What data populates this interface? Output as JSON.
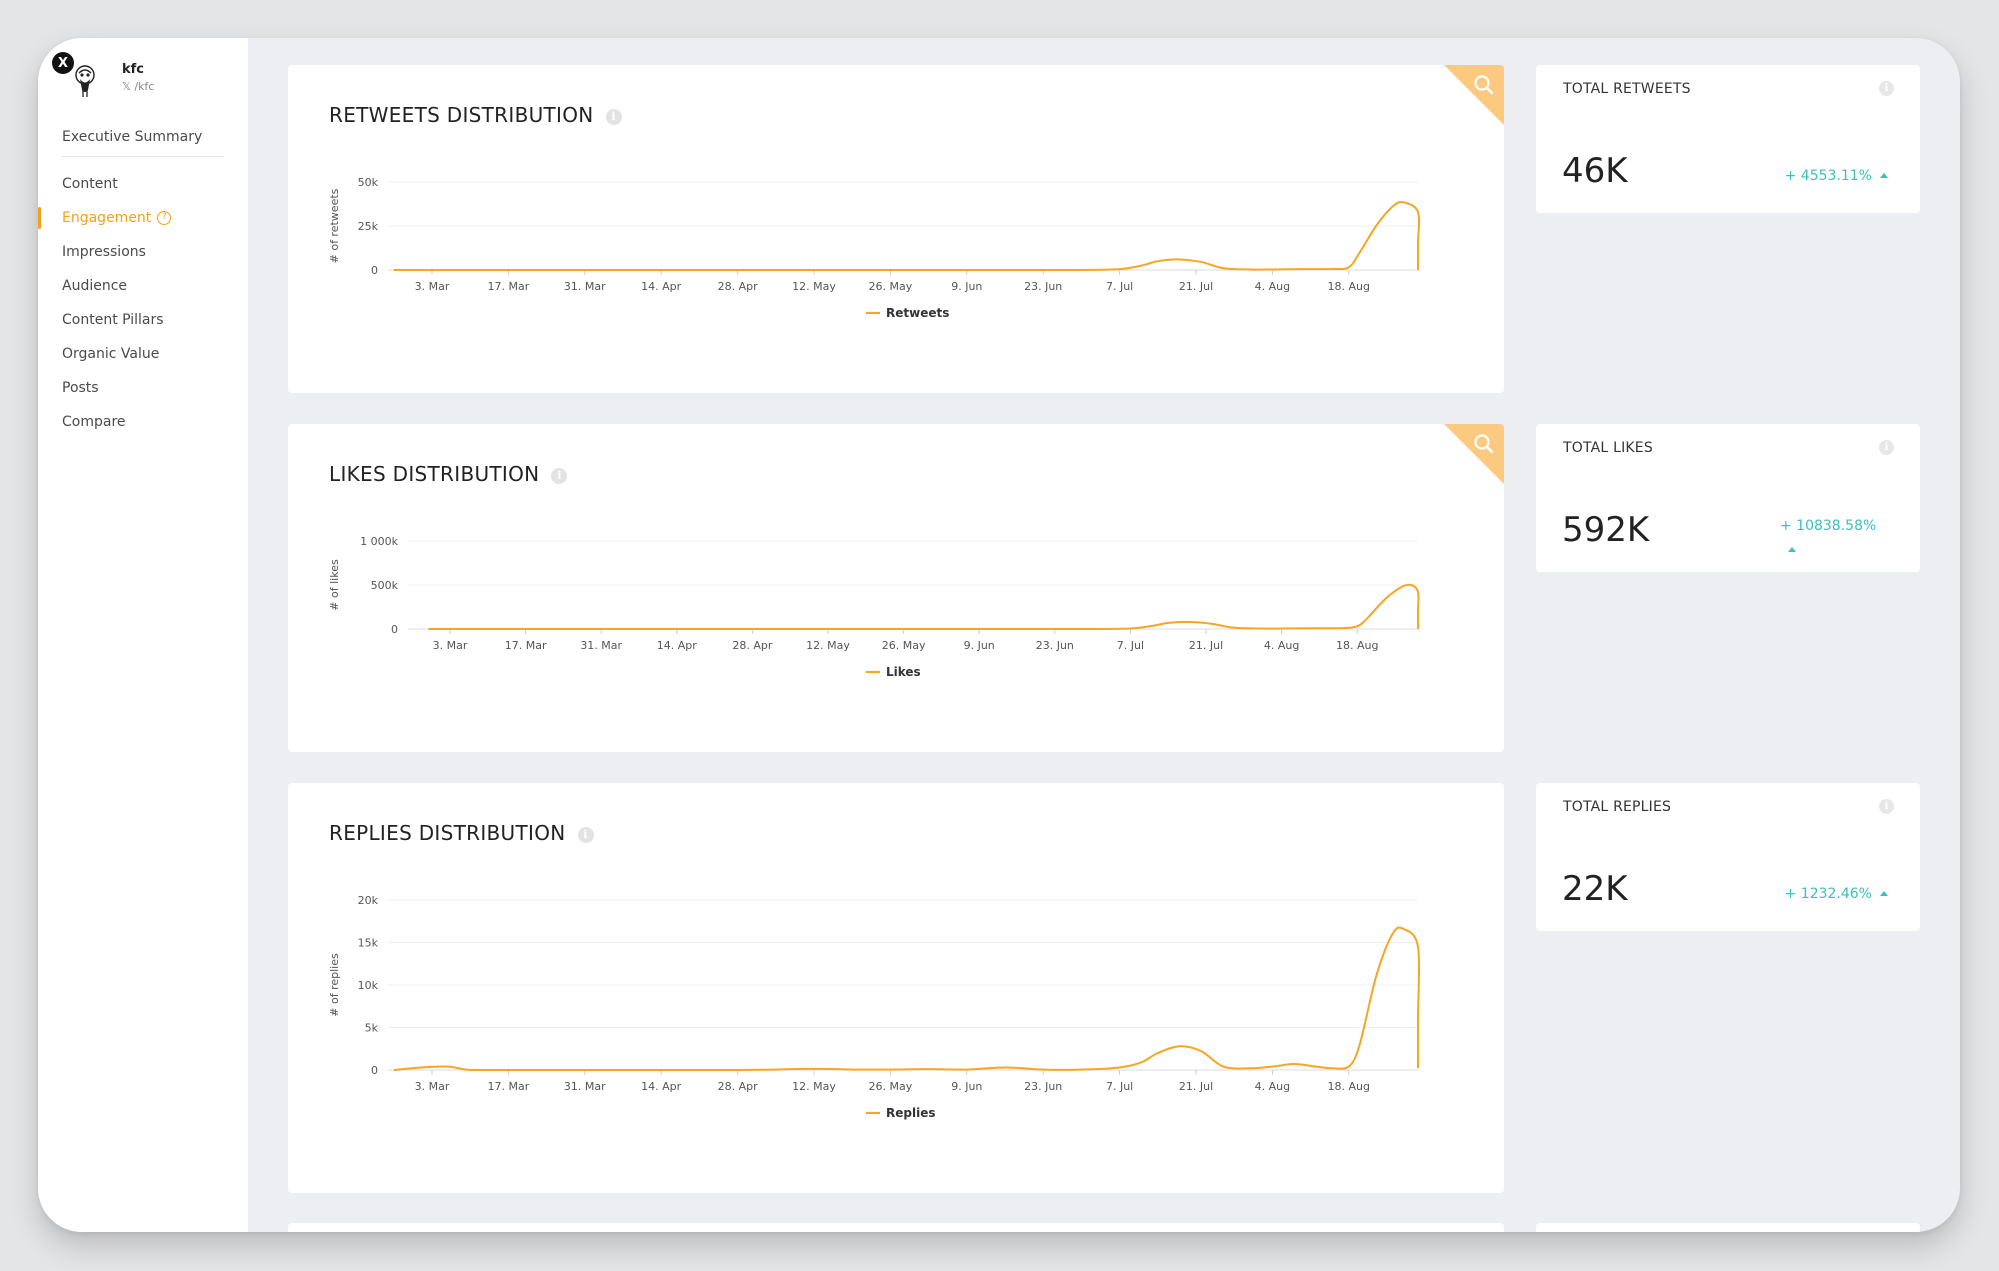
{
  "sidebar": {
    "brand_name": "kfc",
    "brand_handle": "𝕏 /kfc",
    "items": [
      {
        "label": "Executive Summary"
      },
      {
        "label": "Content"
      },
      {
        "label": "Engagement",
        "active": true
      },
      {
        "label": "Impressions"
      },
      {
        "label": "Audience"
      },
      {
        "label": "Content Pillars"
      },
      {
        "label": "Organic Value"
      },
      {
        "label": "Posts"
      },
      {
        "label": "Compare"
      }
    ]
  },
  "colors": {
    "accent": "#f2a11a",
    "line": "#f5a623",
    "positive": "#3bbfbf"
  },
  "chart_data": [
    {
      "type": "line",
      "title": "RETWEETS DISTRIBUTION",
      "ylabel": "# of retweets",
      "yticks": [
        "0",
        "25k",
        "50k"
      ],
      "ylim": [
        0,
        50000
      ],
      "xticks": [
        "3. Mar",
        "17. Mar",
        "31. Mar",
        "14. Apr",
        "28. Apr",
        "12. May",
        "26. May",
        "9. Jun",
        "23. Jun",
        "7. Jul",
        "21. Jul",
        "4. Aug",
        "18. Aug"
      ],
      "series": [
        {
          "name": "Retweets",
          "x": [
            -7,
            7,
            14,
            21,
            28,
            35,
            42,
            49,
            56,
            63,
            70,
            77,
            84,
            91,
            98,
            105,
            112,
            119,
            126,
            130,
            133,
            137,
            141,
            145,
            150,
            154,
            160,
            165,
            168,
            170,
            173,
            176,
            178,
            181,
            184,
            186,
            189,
            192,
            196,
            197
          ],
          "y": [
            0,
            0,
            0,
            0,
            0,
            0,
            0,
            0,
            0,
            0,
            0,
            0,
            0,
            0,
            0,
            0,
            0,
            0,
            500,
            2500,
            5000,
            6000,
            4500,
            1000,
            300,
            300,
            500,
            600,
            1500,
            10000,
            25000,
            36000,
            38500,
            33000,
            15000,
            3000,
            500,
            500,
            600,
            1500
          ]
        }
      ]
    },
    {
      "type": "line",
      "title": "LIKES DISTRIBUTION",
      "ylabel": "# of likes",
      "yticks": [
        "0",
        "500k",
        "1 000k"
      ],
      "ylim": [
        0,
        1000000
      ],
      "xticks": [
        "3. Mar",
        "17. Mar",
        "31. Mar",
        "14. Apr",
        "28. Apr",
        "12. May",
        "26. May",
        "9. Jun",
        "23. Jun",
        "7. Jul",
        "21. Jul",
        "4. Aug",
        "18. Aug"
      ],
      "series": [
        {
          "name": "Likes",
          "x": [
            -4,
            7,
            14,
            21,
            28,
            35,
            42,
            49,
            56,
            63,
            70,
            77,
            84,
            91,
            98,
            105,
            112,
            119,
            126,
            130,
            133,
            137,
            141,
            145,
            150,
            154,
            160,
            165,
            168,
            170,
            173,
            176,
            178,
            181,
            184,
            186,
            189,
            192,
            196,
            197
          ],
          "y": [
            0,
            0,
            0,
            0,
            0,
            0,
            0,
            0,
            0,
            0,
            0,
            0,
            0,
            0,
            0,
            0,
            0,
            0,
            5000,
            35000,
            70000,
            80000,
            60000,
            15000,
            5000,
            5000,
            8000,
            10000,
            30000,
            130000,
            330000,
            470000,
            500000,
            420000,
            200000,
            40000,
            10000,
            10000,
            15000,
            20000
          ]
        }
      ]
    },
    {
      "type": "line",
      "title": "REPLIES DISTRIBUTION",
      "ylabel": "# of replies",
      "yticks": [
        "0",
        "5k",
        "10k",
        "15k",
        "20k"
      ],
      "ylim": [
        0,
        20000
      ],
      "xticks": [
        "3. Mar",
        "17. Mar",
        "31. Mar",
        "14. Apr",
        "28. Apr",
        "12. May",
        "26. May",
        "9. Jun",
        "23. Jun",
        "7. Jul",
        "21. Jul",
        "4. Aug",
        "18. Aug"
      ],
      "series": [
        {
          "name": "Replies",
          "x": [
            -7,
            -2,
            3,
            7,
            14,
            21,
            28,
            35,
            42,
            49,
            56,
            63,
            70,
            77,
            84,
            91,
            98,
            105,
            112,
            119,
            126,
            130,
            133,
            137,
            141,
            145,
            150,
            154,
            158,
            162,
            165,
            168,
            170,
            173,
            176,
            178,
            181,
            184,
            186,
            189,
            192,
            196,
            197
          ],
          "y": [
            0,
            300,
            400,
            0,
            0,
            0,
            0,
            0,
            0,
            0,
            0,
            50,
            150,
            50,
            50,
            100,
            50,
            300,
            50,
            50,
            300,
            900,
            2000,
            2800,
            2200,
            400,
            200,
            400,
            700,
            400,
            200,
            400,
            3000,
            11000,
            16000,
            16600,
            14500,
            6000,
            1000,
            500,
            400,
            300,
            300
          ]
        }
      ]
    }
  ],
  "stats": [
    {
      "title": "TOTAL RETWEETS",
      "value": "46K",
      "change": "+ 4553.11%"
    },
    {
      "title": "TOTAL LIKES",
      "value": "592K",
      "change": "+ 10838.58%"
    },
    {
      "title": "TOTAL REPLIES",
      "value": "22K",
      "change": "+ 1232.46%"
    }
  ]
}
